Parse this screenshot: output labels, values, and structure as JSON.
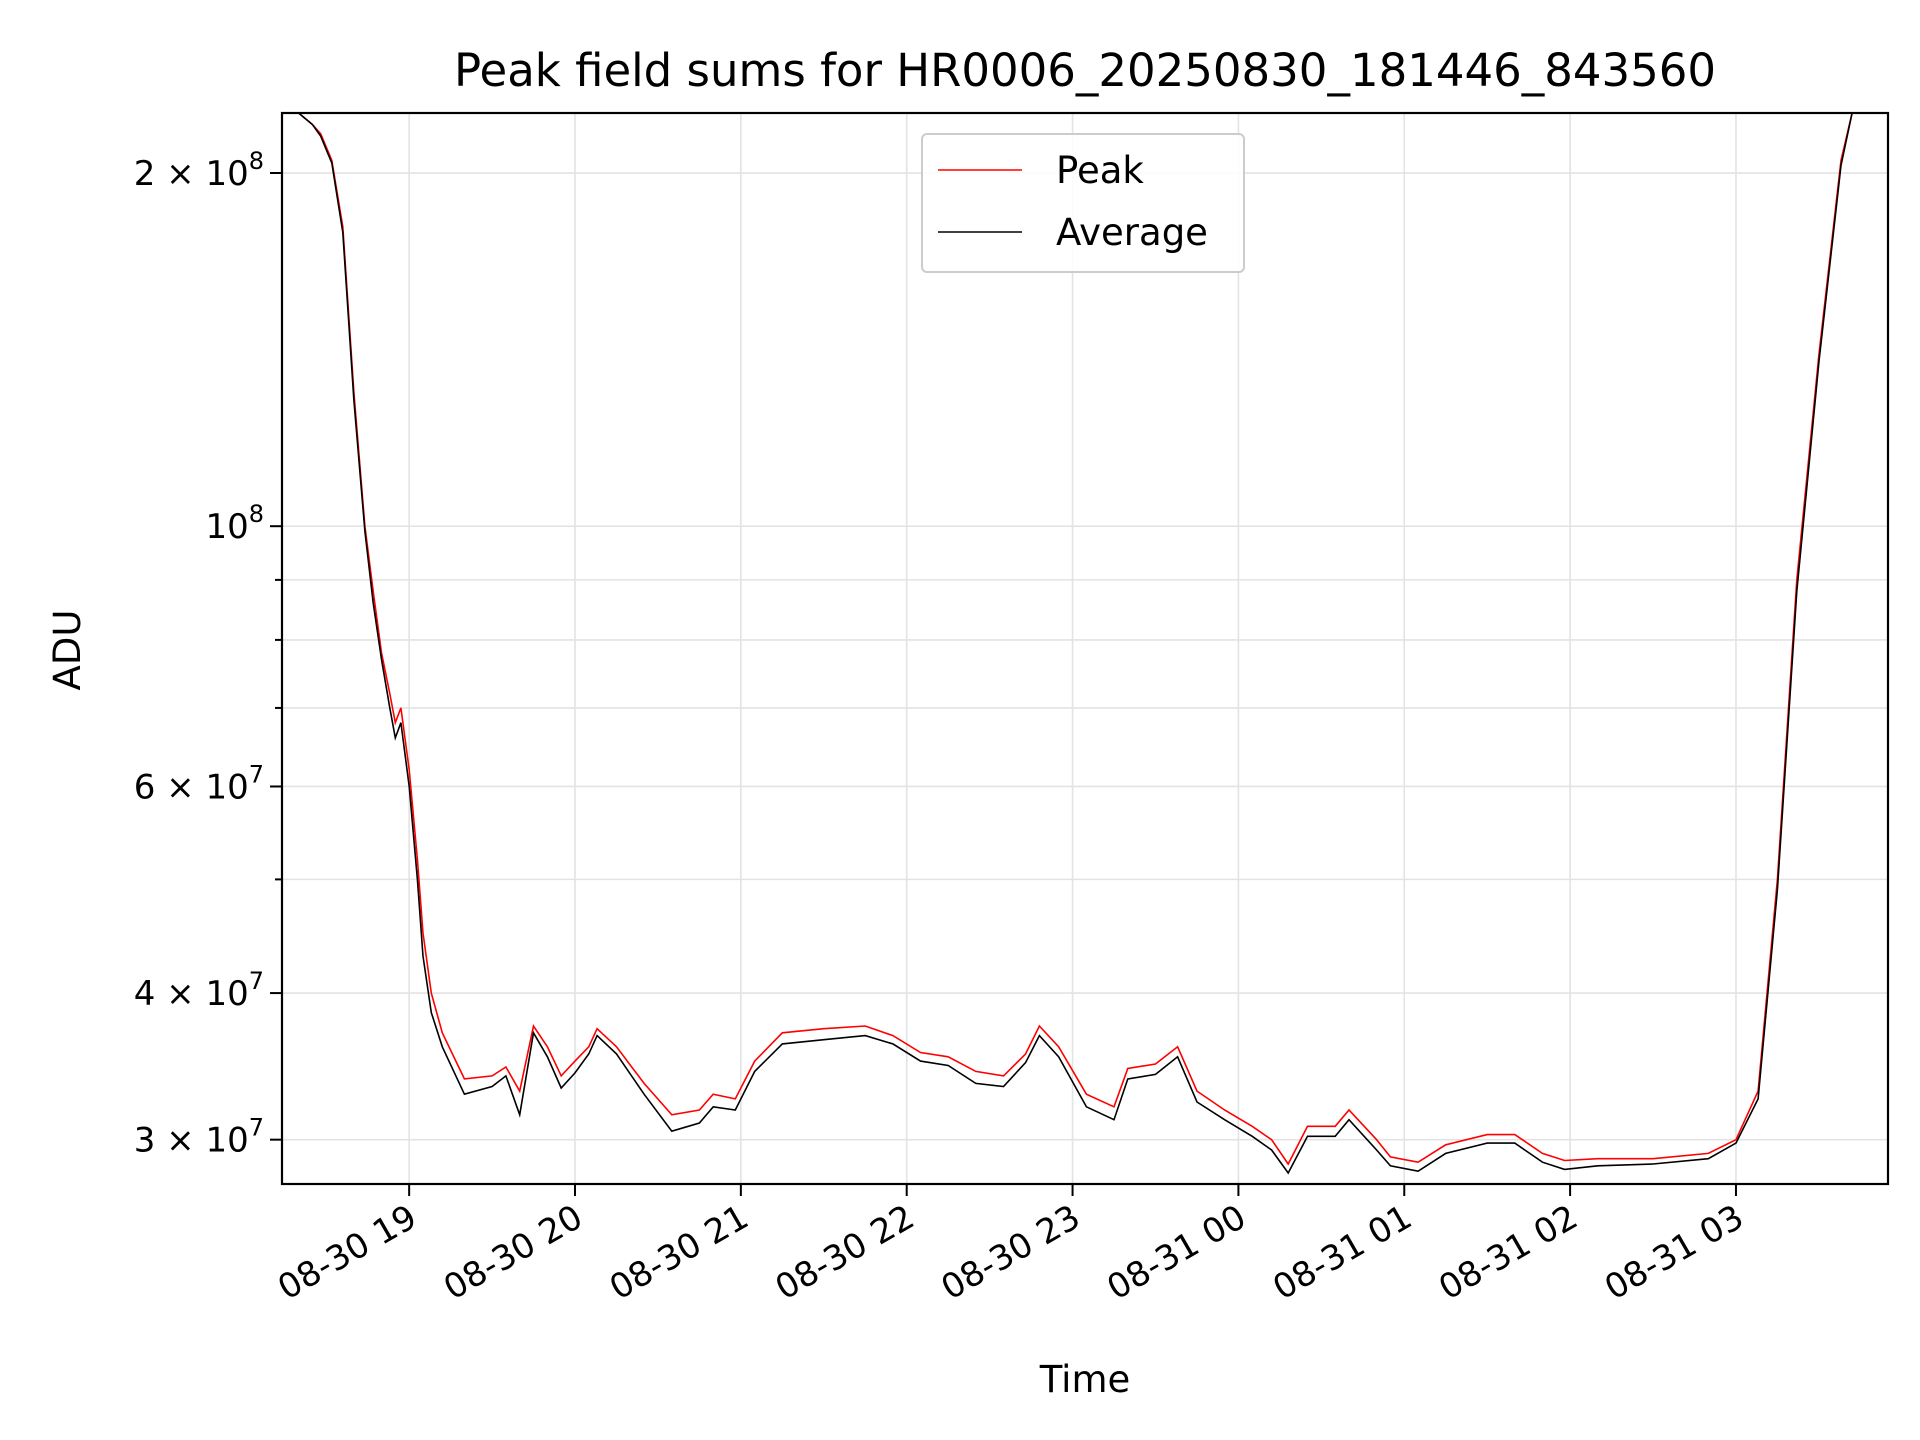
{
  "chart_data": {
    "type": "line",
    "title": "Peak field sums for HR0006_20250830_181446_843560",
    "xlabel": "Time",
    "ylabel": "ADU",
    "y_scale": "log",
    "grid": true,
    "legend_position": "top-center",
    "xlim": [
      "2025-08-30 18:14",
      "2025-08-31 03:55"
    ],
    "ylim": [
      27500000,
      225000000
    ],
    "x_ticks": [
      {
        "t": "2025-08-30 19:00",
        "label": "08-30 19"
      },
      {
        "t": "2025-08-30 20:00",
        "label": "08-30 20"
      },
      {
        "t": "2025-08-30 21:00",
        "label": "08-30 21"
      },
      {
        "t": "2025-08-30 22:00",
        "label": "08-30 22"
      },
      {
        "t": "2025-08-30 23:00",
        "label": "08-30 23"
      },
      {
        "t": "2025-08-31 00:00",
        "label": "08-31 00"
      },
      {
        "t": "2025-08-31 01:00",
        "label": "08-31 01"
      },
      {
        "t": "2025-08-31 02:00",
        "label": "08-31 02"
      },
      {
        "t": "2025-08-31 03:00",
        "label": "08-31 03"
      }
    ],
    "y_ticks": [
      {
        "value": 200000000,
        "mant": "2",
        "exp": "8"
      },
      {
        "value": 100000000,
        "mant": "",
        "exp": "8"
      },
      {
        "value": 60000000,
        "mant": "6",
        "exp": "7"
      },
      {
        "value": 40000000,
        "mant": "4",
        "exp": "7"
      },
      {
        "value": 30000000,
        "mant": "3",
        "exp": "7"
      }
    ],
    "y_minor_ticks": [
      90000000,
      80000000,
      70000000,
      50000000
    ],
    "series": [
      {
        "name": "Peak",
        "color": "#ff0000",
        "points": [
          [
            "2025-08-30 18:14",
            225000000
          ],
          [
            "2025-08-30 18:20",
            225000000
          ],
          [
            "2025-08-30 18:25",
            220000000
          ],
          [
            "2025-08-30 18:28",
            216000000
          ],
          [
            "2025-08-30 18:32",
            205000000
          ],
          [
            "2025-08-30 18:36",
            180000000
          ],
          [
            "2025-08-30 18:40",
            130000000
          ],
          [
            "2025-08-30 18:44",
            100000000
          ],
          [
            "2025-08-30 18:47",
            88000000
          ],
          [
            "2025-08-30 18:50",
            78000000
          ],
          [
            "2025-08-30 18:53",
            72000000
          ],
          [
            "2025-08-30 18:55",
            68000000
          ],
          [
            "2025-08-30 18:57",
            70000000
          ],
          [
            "2025-08-30 19:00",
            62000000
          ],
          [
            "2025-08-30 19:03",
            52000000
          ],
          [
            "2025-08-30 19:05",
            45000000
          ],
          [
            "2025-08-30 19:08",
            40000000
          ],
          [
            "2025-08-30 19:12",
            37000000
          ],
          [
            "2025-08-30 19:20",
            33800000
          ],
          [
            "2025-08-30 19:30",
            34000000
          ],
          [
            "2025-08-30 19:35",
            34600000
          ],
          [
            "2025-08-30 19:40",
            33000000
          ],
          [
            "2025-08-30 19:45",
            37500000
          ],
          [
            "2025-08-30 19:50",
            36000000
          ],
          [
            "2025-08-30 19:55",
            34000000
          ],
          [
            "2025-08-30 20:00",
            35000000
          ],
          [
            "2025-08-30 20:05",
            36000000
          ],
          [
            "2025-08-30 20:08",
            37300000
          ],
          [
            "2025-08-30 20:15",
            36000000
          ],
          [
            "2025-08-30 20:25",
            33500000
          ],
          [
            "2025-08-30 20:35",
            31500000
          ],
          [
            "2025-08-30 20:45",
            31800000
          ],
          [
            "2025-08-30 20:50",
            32800000
          ],
          [
            "2025-08-30 20:58",
            32500000
          ],
          [
            "2025-08-30 21:05",
            35000000
          ],
          [
            "2025-08-30 21:15",
            37000000
          ],
          [
            "2025-08-30 21:30",
            37300000
          ],
          [
            "2025-08-30 21:45",
            37500000
          ],
          [
            "2025-08-30 21:55",
            36800000
          ],
          [
            "2025-08-30 22:05",
            35600000
          ],
          [
            "2025-08-30 22:15",
            35300000
          ],
          [
            "2025-08-30 22:25",
            34300000
          ],
          [
            "2025-08-30 22:35",
            34000000
          ],
          [
            "2025-08-30 22:43",
            35500000
          ],
          [
            "2025-08-30 22:48",
            37500000
          ],
          [
            "2025-08-30 22:55",
            36000000
          ],
          [
            "2025-08-30 23:05",
            32800000
          ],
          [
            "2025-08-30 23:15",
            32000000
          ],
          [
            "2025-08-30 23:20",
            34500000
          ],
          [
            "2025-08-30 23:30",
            34800000
          ],
          [
            "2025-08-30 23:38",
            36000000
          ],
          [
            "2025-08-30 23:45",
            33000000
          ],
          [
            "2025-08-30 23:55",
            31800000
          ],
          [
            "2025-08-31 00:05",
            30800000
          ],
          [
            "2025-08-31 00:12",
            30000000
          ],
          [
            "2025-08-31 00:18",
            28600000
          ],
          [
            "2025-08-31 00:25",
            30800000
          ],
          [
            "2025-08-31 00:35",
            30800000
          ],
          [
            "2025-08-31 00:40",
            31800000
          ],
          [
            "2025-08-31 00:50",
            30000000
          ],
          [
            "2025-08-31 00:55",
            29000000
          ],
          [
            "2025-08-31 01:05",
            28700000
          ],
          [
            "2025-08-31 01:15",
            29700000
          ],
          [
            "2025-08-31 01:30",
            30300000
          ],
          [
            "2025-08-31 01:40",
            30300000
          ],
          [
            "2025-08-31 01:50",
            29200000
          ],
          [
            "2025-08-31 01:58",
            28800000
          ],
          [
            "2025-08-31 02:10",
            28900000
          ],
          [
            "2025-08-31 02:30",
            28900000
          ],
          [
            "2025-08-31 02:50",
            29200000
          ],
          [
            "2025-08-31 03:00",
            30000000
          ],
          [
            "2025-08-31 03:08",
            33000000
          ],
          [
            "2025-08-31 03:15",
            50000000
          ],
          [
            "2025-08-31 03:22",
            90000000
          ],
          [
            "2025-08-31 03:30",
            140000000
          ],
          [
            "2025-08-31 03:38",
            205000000
          ],
          [
            "2025-08-31 03:42",
            225000000
          ],
          [
            "2025-08-31 03:55",
            225000000
          ]
        ]
      },
      {
        "name": "Average",
        "color": "#000000",
        "points": [
          [
            "2025-08-30 18:14",
            225000000
          ],
          [
            "2025-08-30 18:20",
            225000000
          ],
          [
            "2025-08-30 18:25",
            220000000
          ],
          [
            "2025-08-30 18:28",
            215000000
          ],
          [
            "2025-08-30 18:32",
            204000000
          ],
          [
            "2025-08-30 18:36",
            178000000
          ],
          [
            "2025-08-30 18:40",
            128000000
          ],
          [
            "2025-08-30 18:44",
            99000000
          ],
          [
            "2025-08-30 18:47",
            86000000
          ],
          [
            "2025-08-30 18:50",
            77000000
          ],
          [
            "2025-08-30 18:53",
            70000000
          ],
          [
            "2025-08-30 18:55",
            66000000
          ],
          [
            "2025-08-30 18:57",
            68000000
          ],
          [
            "2025-08-30 19:00",
            60000000
          ],
          [
            "2025-08-30 19:03",
            50000000
          ],
          [
            "2025-08-30 19:05",
            43000000
          ],
          [
            "2025-08-30 19:08",
            38500000
          ],
          [
            "2025-08-30 19:12",
            36000000
          ],
          [
            "2025-08-30 19:20",
            32800000
          ],
          [
            "2025-08-30 19:30",
            33300000
          ],
          [
            "2025-08-30 19:35",
            34000000
          ],
          [
            "2025-08-30 19:40",
            31500000
          ],
          [
            "2025-08-30 19:45",
            37000000
          ],
          [
            "2025-08-30 19:50",
            35300000
          ],
          [
            "2025-08-30 19:55",
            33200000
          ],
          [
            "2025-08-30 20:00",
            34200000
          ],
          [
            "2025-08-30 20:05",
            35500000
          ],
          [
            "2025-08-30 20:08",
            36800000
          ],
          [
            "2025-08-30 20:15",
            35500000
          ],
          [
            "2025-08-30 20:25",
            32800000
          ],
          [
            "2025-08-30 20:35",
            30500000
          ],
          [
            "2025-08-30 20:45",
            31000000
          ],
          [
            "2025-08-30 20:50",
            32000000
          ],
          [
            "2025-08-30 20:58",
            31800000
          ],
          [
            "2025-08-30 21:05",
            34300000
          ],
          [
            "2025-08-30 21:15",
            36200000
          ],
          [
            "2025-08-30 21:30",
            36500000
          ],
          [
            "2025-08-30 21:45",
            36800000
          ],
          [
            "2025-08-30 21:55",
            36200000
          ],
          [
            "2025-08-30 22:05",
            35000000
          ],
          [
            "2025-08-30 22:15",
            34700000
          ],
          [
            "2025-08-30 22:25",
            33500000
          ],
          [
            "2025-08-30 22:35",
            33300000
          ],
          [
            "2025-08-30 22:43",
            34900000
          ],
          [
            "2025-08-30 22:48",
            36800000
          ],
          [
            "2025-08-30 22:55",
            35300000
          ],
          [
            "2025-08-30 23:05",
            32000000
          ],
          [
            "2025-08-30 23:15",
            31200000
          ],
          [
            "2025-08-30 23:20",
            33800000
          ],
          [
            "2025-08-30 23:30",
            34100000
          ],
          [
            "2025-08-30 23:38",
            35300000
          ],
          [
            "2025-08-30 23:45",
            32300000
          ],
          [
            "2025-08-30 23:55",
            31200000
          ],
          [
            "2025-08-31 00:05",
            30200000
          ],
          [
            "2025-08-31 00:12",
            29400000
          ],
          [
            "2025-08-31 00:18",
            28100000
          ],
          [
            "2025-08-31 00:25",
            30200000
          ],
          [
            "2025-08-31 00:35",
            30200000
          ],
          [
            "2025-08-31 00:40",
            31200000
          ],
          [
            "2025-08-31 00:50",
            29400000
          ],
          [
            "2025-08-31 00:55",
            28500000
          ],
          [
            "2025-08-31 01:05",
            28200000
          ],
          [
            "2025-08-31 01:15",
            29200000
          ],
          [
            "2025-08-31 01:30",
            29800000
          ],
          [
            "2025-08-31 01:40",
            29800000
          ],
          [
            "2025-08-31 01:50",
            28700000
          ],
          [
            "2025-08-31 01:58",
            28300000
          ],
          [
            "2025-08-31 02:10",
            28500000
          ],
          [
            "2025-08-31 02:30",
            28600000
          ],
          [
            "2025-08-31 02:50",
            28900000
          ],
          [
            "2025-08-31 03:00",
            29800000
          ],
          [
            "2025-08-31 03:08",
            32500000
          ],
          [
            "2025-08-31 03:15",
            49000000
          ],
          [
            "2025-08-31 03:22",
            88000000
          ],
          [
            "2025-08-31 03:30",
            138000000
          ],
          [
            "2025-08-31 03:38",
            203000000
          ],
          [
            "2025-08-31 03:42",
            225000000
          ],
          [
            "2025-08-31 03:55",
            225000000
          ]
        ]
      }
    ]
  }
}
